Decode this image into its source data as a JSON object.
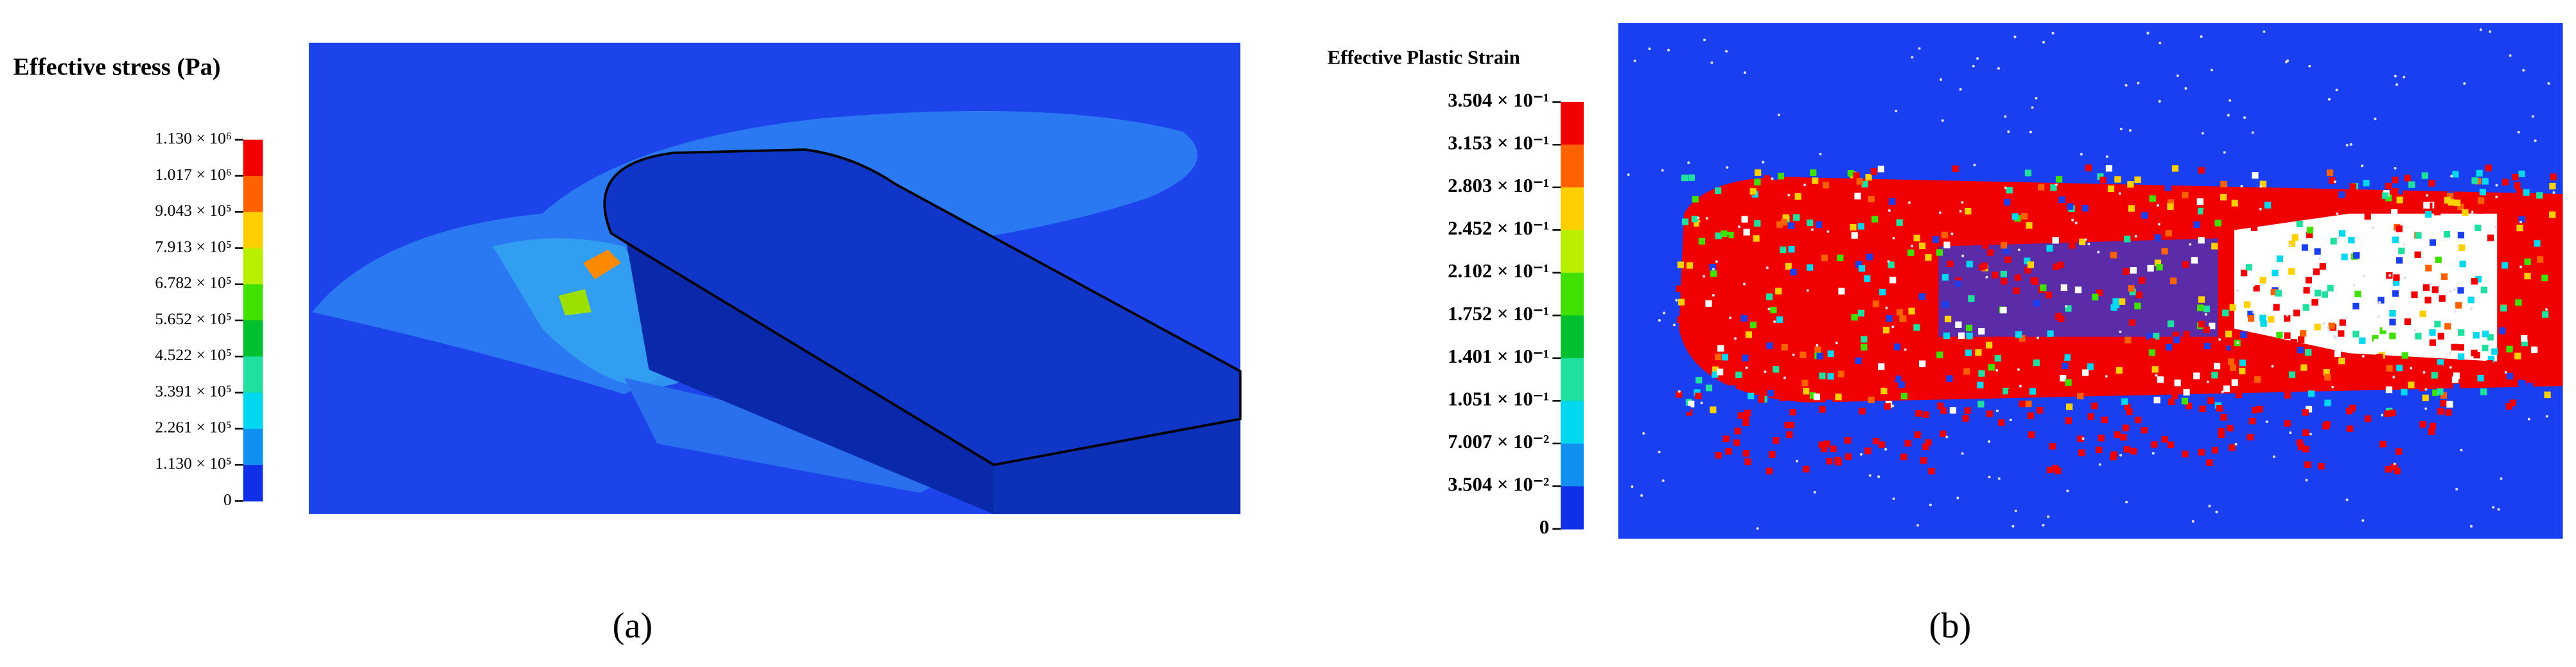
{
  "panels": [
    {
      "title": "Effective stress (Pa)",
      "colorbar_labels": [
        "1.130 × 10⁶",
        "1.017 × 10⁶",
        "9.043 × 10⁵",
        "7.913 × 10⁵",
        "6.782 × 10⁵",
        "5.652 × 10⁵",
        "4.522 × 10⁵",
        "3.391 × 10⁵",
        "2.261 × 10⁵",
        "1.130 × 10⁵",
        "0"
      ],
      "caption": "(a)"
    },
    {
      "title": "Effective Plastic Strain",
      "colorbar_labels": [
        "3.504 × 10⁻¹",
        "3.153 × 10⁻¹",
        "2.803 × 10⁻¹",
        "2.452 × 10⁻¹",
        "2.102 × 10⁻¹",
        "1.752 × 10⁻¹",
        "1.401 × 10⁻¹",
        "1.051 × 10⁻¹",
        "7.007 × 10⁻²",
        "3.504 × 10⁻²",
        "0"
      ],
      "caption": "(b)"
    }
  ]
}
